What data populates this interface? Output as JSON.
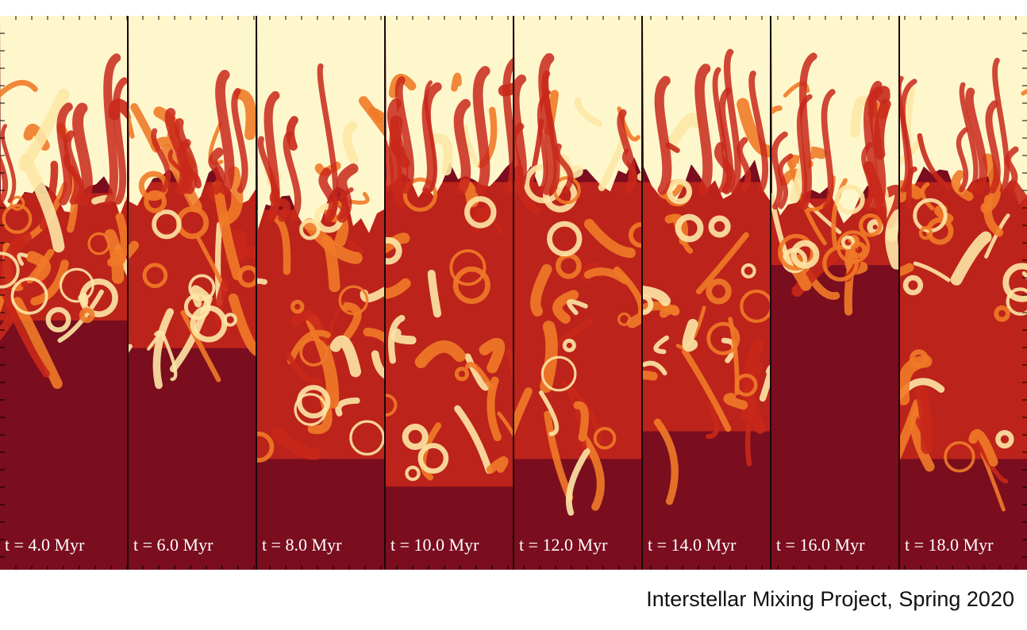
{
  "figure": {
    "panels": [
      {
        "label": "t = 4.0 Myr"
      },
      {
        "label": "t = 6.0 Myr"
      },
      {
        "label": "t = 8.0 Myr"
      },
      {
        "label": "t = 10.0 Myr"
      },
      {
        "label": "t = 12.0 Myr"
      },
      {
        "label": "t = 14.0 Myr"
      },
      {
        "label": "t = 16.0 Myr"
      },
      {
        "label": "t = 18.0 Myr"
      }
    ],
    "colors": {
      "cold": "#7a0d1e",
      "mid": "#c8281a",
      "warm": "#f07a28",
      "hot": "#fde7a6",
      "top": "#fff7cc"
    }
  },
  "caption": "Interstellar Mixing Project, Spring 2020"
}
